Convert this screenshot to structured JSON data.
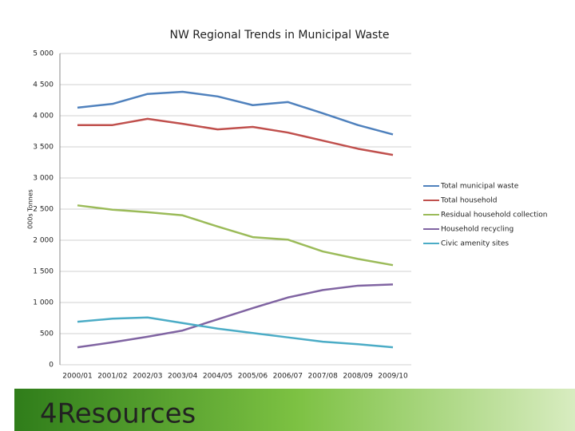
{
  "chart_data": {
    "type": "line",
    "title": "NW Regional Trends in Municipal Waste",
    "y_label": "000s Tonnes",
    "categories": [
      "2000/01",
      "2001/02",
      "2002/03",
      "2003/04",
      "2004/05",
      "2005/06",
      "2006/07",
      "2007/08",
      "2008/09",
      "2009/10"
    ],
    "series": [
      {
        "name": "Total municipal waste",
        "color": "#4f81bd",
        "values": [
          4130,
          4190,
          4350,
          4385,
          4310,
          4170,
          4220,
          4040,
          3850,
          3700
        ]
      },
      {
        "name": "Total household",
        "color": "#c0504d",
        "values": [
          3850,
          3850,
          3950,
          3870,
          3780,
          3820,
          3730,
          3600,
          3470,
          3370
        ]
      },
      {
        "name": "Residual household collection",
        "color": "#9bbb59",
        "values": [
          2560,
          2490,
          2450,
          2400,
          2220,
          2050,
          2010,
          1820,
          1700,
          1600
        ]
      },
      {
        "name": "Household recycling",
        "color": "#8064a2",
        "values": [
          280,
          360,
          450,
          550,
          730,
          910,
          1080,
          1200,
          1270,
          1290
        ]
      },
      {
        "name": "Civic amenity sites",
        "color": "#4bacc6",
        "values": [
          690,
          740,
          760,
          670,
          580,
          510,
          440,
          370,
          330,
          280
        ]
      }
    ],
    "ylim": [
      0,
      5000
    ],
    "yticks": [
      0,
      500,
      {
        "value": 1000,
        "label": "1 000"
      },
      {
        "value": 1500,
        "label": "1 500"
      },
      {
        "value": 2000,
        "label": "2 000"
      },
      {
        "value": 2500,
        "label": "2 500"
      },
      {
        "value": 3000,
        "label": "3 000"
      },
      {
        "value": 3500,
        "label": "3 500"
      },
      {
        "value": 4000,
        "label": "4 000"
      },
      {
        "value": 4500,
        "label": "4 500"
      },
      {
        "value": 5000,
        "label": "5 000"
      }
    ],
    "grid": true,
    "legend": "right"
  },
  "footer_logo": "4Resources"
}
